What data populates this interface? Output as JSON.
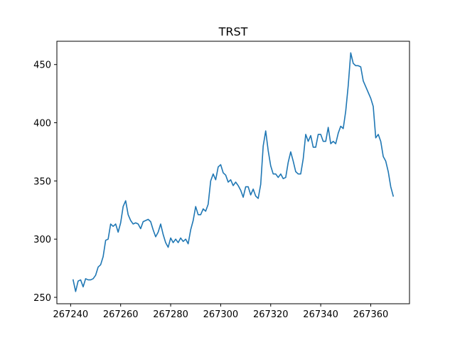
{
  "chart_data": {
    "type": "line",
    "title": "TRST",
    "xlabel": "",
    "ylabel": "",
    "xlim": [
      267234.5,
      267375.5
    ],
    "ylim": [
      244.5,
      470.0
    ],
    "xticks": [
      267240,
      267260,
      267280,
      267300,
      267320,
      267340,
      267360
    ],
    "yticks": [
      250,
      300,
      350,
      400,
      450
    ],
    "grid": false,
    "line_color": "#1f77b4",
    "series": [
      {
        "x": [
          267241,
          267242,
          267243,
          267244,
          267245,
          267246,
          267247,
          267248,
          267249,
          267250,
          267251,
          267252,
          267253,
          267254,
          267255,
          267256,
          267257,
          267258,
          267259,
          267260,
          267261,
          267262,
          267263,
          267264,
          267265,
          267266,
          267267,
          267268,
          267269,
          267270,
          267271,
          267272,
          267273,
          267274,
          267275,
          267276,
          267277,
          267278,
          267279,
          267280,
          267281,
          267282,
          267283,
          267284,
          267285,
          267286,
          267287,
          267288,
          267289,
          267290,
          267291,
          267292,
          267293,
          267294,
          267295,
          267296,
          267297,
          267298,
          267299,
          267300,
          267301,
          267302,
          267303,
          267304,
          267305,
          267306,
          267307,
          267308,
          267309,
          267310,
          267311,
          267312,
          267313,
          267314,
          267315,
          267316,
          267317,
          267318,
          267319,
          267320,
          267321,
          267322,
          267323,
          267324,
          267325,
          267326,
          267327,
          267328,
          267329,
          267330,
          267331,
          267332,
          267333,
          267334,
          267335,
          267336,
          267337,
          267338,
          267339,
          267340,
          267341,
          267342,
          267343,
          267344,
          267345,
          267346,
          267347,
          267348,
          267349,
          267350,
          267351,
          267352,
          267353,
          267354,
          267355,
          267356,
          267357,
          267358,
          267359,
          267360,
          267361,
          267362,
          267363,
          267364,
          267365,
          267366,
          267367,
          267368,
          267369
        ],
        "values": [
          265,
          255,
          264,
          265,
          259,
          266,
          265,
          265,
          266,
          269,
          276,
          278,
          285,
          299,
          300,
          313,
          311,
          313,
          306,
          314,
          328,
          333,
          321,
          316,
          313,
          314,
          313,
          309,
          315,
          316,
          317,
          315,
          308,
          302,
          306,
          313,
          304,
          297,
          293,
          301,
          297,
          300,
          297,
          301,
          298,
          300,
          296,
          308,
          316,
          328,
          321,
          321,
          326,
          324,
          330,
          350,
          356,
          351,
          362,
          364,
          357,
          355,
          349,
          351,
          346,
          349,
          346,
          342,
          336,
          345,
          345,
          338,
          343,
          337,
          335,
          347,
          380,
          393,
          376,
          363,
          356,
          356,
          353,
          356,
          352,
          353,
          366,
          375,
          367,
          358,
          356,
          356,
          369,
          390,
          384,
          389,
          379,
          379,
          390,
          390,
          384,
          384,
          396,
          382,
          384,
          382,
          391,
          397,
          395,
          410,
          432,
          460,
          451,
          449,
          449,
          448,
          436,
          431,
          426,
          421,
          414,
          387,
          390,
          384,
          371,
          367,
          358,
          345,
          337
        ]
      }
    ]
  }
}
